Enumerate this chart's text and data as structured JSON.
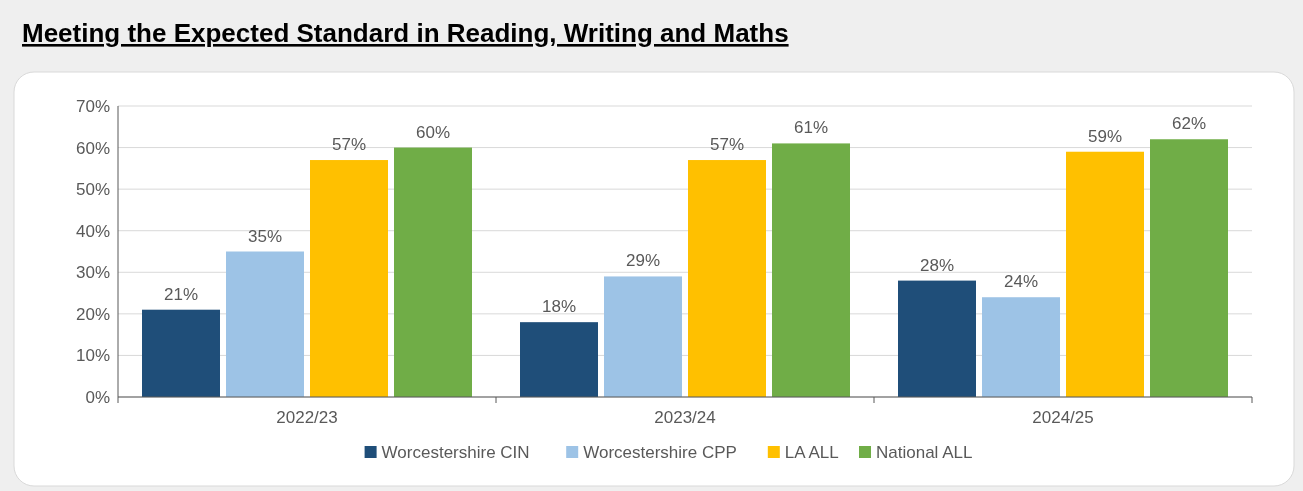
{
  "chart_data": {
    "type": "bar",
    "title": "Meeting the Expected Standard in Reading, Writing and Maths",
    "categories": [
      "2022/23",
      "2023/24",
      "2024/25"
    ],
    "series": [
      {
        "name": "Worcestershire CIN",
        "color": "#1f4e79",
        "values": [
          21,
          18,
          28
        ],
        "value_labels": [
          "21%",
          "18%",
          "28%"
        ]
      },
      {
        "name": "Worcestershire CPP",
        "color": "#9dc3e6",
        "values": [
          35,
          29,
          24
        ],
        "value_labels": [
          "35%",
          "29%",
          "24%"
        ]
      },
      {
        "name": "LA ALL",
        "color": "#ffc000",
        "values": [
          57,
          57,
          59
        ],
        "value_labels": [
          "57%",
          "57%",
          "59%"
        ]
      },
      {
        "name": "National ALL",
        "color": "#70ad47",
        "values": [
          60,
          61,
          62
        ],
        "value_labels": [
          "60%",
          "61%",
          "62%"
        ]
      }
    ],
    "ylim": [
      0,
      70
    ],
    "yticks": [
      {
        "value": 0,
        "label": "0%"
      },
      {
        "value": 10,
        "label": "10%"
      },
      {
        "value": 20,
        "label": "20%"
      },
      {
        "value": 30,
        "label": "30%"
      },
      {
        "value": 40,
        "label": "40%"
      },
      {
        "value": 50,
        "label": "50%"
      },
      {
        "value": 60,
        "label": "60%"
      },
      {
        "value": 70,
        "label": "70%"
      }
    ],
    "grid": "y",
    "legend": "bottom"
  }
}
